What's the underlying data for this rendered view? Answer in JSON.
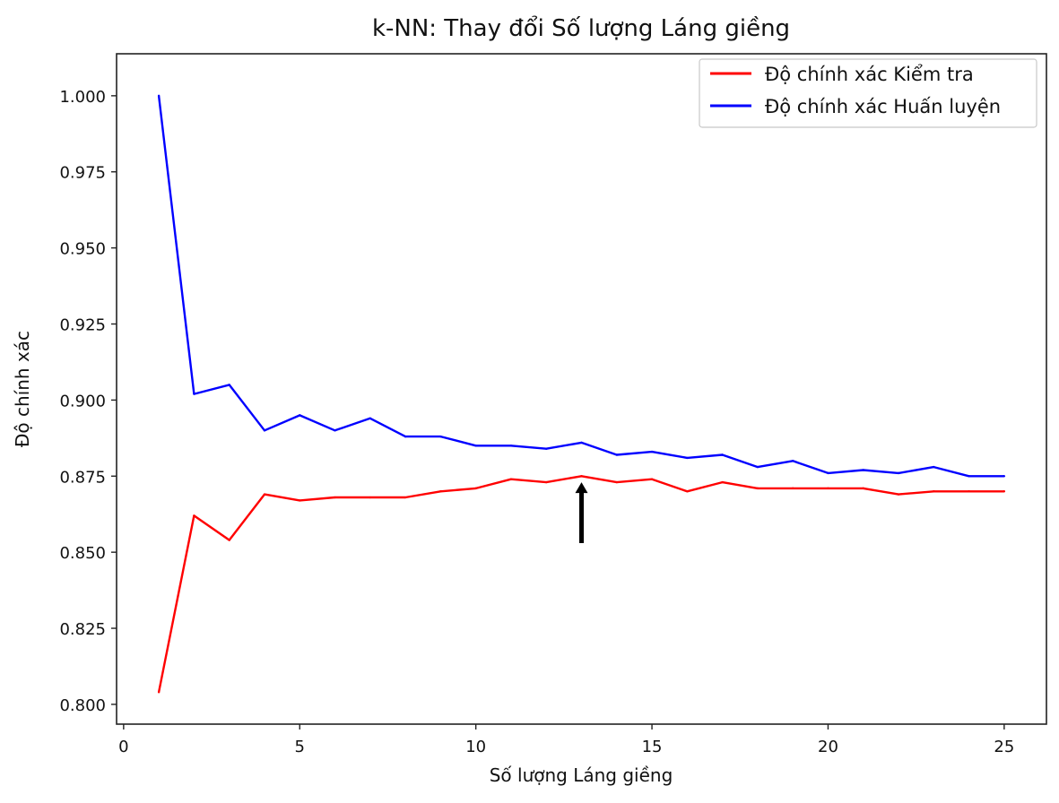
{
  "chart_data": {
    "type": "line",
    "title": "k-NN: Thay đổi Số lượng Láng giềng",
    "xlabel": "Số lượng Láng giềng",
    "ylabel": "Độ chính xác",
    "xlim": [
      -0.2,
      26.2
    ],
    "ylim": [
      0.7935,
      1.0138
    ],
    "x_ticks": [
      0,
      5,
      10,
      15,
      20,
      25
    ],
    "x_tick_labels": [
      "0",
      "5",
      "10",
      "15",
      "20",
      "25"
    ],
    "y_ticks": [
      0.8,
      0.825,
      0.85,
      0.875,
      0.9,
      0.925,
      0.95,
      0.975,
      1.0
    ],
    "y_tick_labels": [
      "0.800",
      "0.825",
      "0.850",
      "0.875",
      "0.900",
      "0.925",
      "0.950",
      "0.975",
      "1.000"
    ],
    "grid": false,
    "legend_position": "top-right",
    "x": [
      1,
      2,
      3,
      4,
      5,
      6,
      7,
      8,
      9,
      10,
      11,
      12,
      13,
      14,
      15,
      16,
      17,
      18,
      19,
      20,
      21,
      22,
      23,
      24,
      25
    ],
    "series": [
      {
        "name": "Độ chính xác Kiểm tra",
        "color": "#ff0000",
        "values": [
          0.804,
          0.862,
          0.854,
          0.869,
          0.867,
          0.868,
          0.868,
          0.868,
          0.87,
          0.871,
          0.874,
          0.873,
          0.875,
          0.873,
          0.874,
          0.87,
          0.873,
          0.871,
          0.871,
          0.871,
          0.871,
          0.869,
          0.87,
          0.87,
          0.87
        ]
      },
      {
        "name": "Độ chính xác Huấn luyện",
        "color": "#0000ff",
        "values": [
          1.0,
          0.902,
          0.905,
          0.89,
          0.895,
          0.89,
          0.894,
          0.888,
          0.888,
          0.885,
          0.885,
          0.884,
          0.886,
          0.882,
          0.883,
          0.881,
          0.882,
          0.878,
          0.88,
          0.876,
          0.877,
          0.876,
          0.878,
          0.875,
          0.875
        ]
      }
    ],
    "annotation": {
      "type": "arrow",
      "color": "#000000",
      "x": 13,
      "y_tail": 0.853,
      "y_head": 0.873
    }
  }
}
